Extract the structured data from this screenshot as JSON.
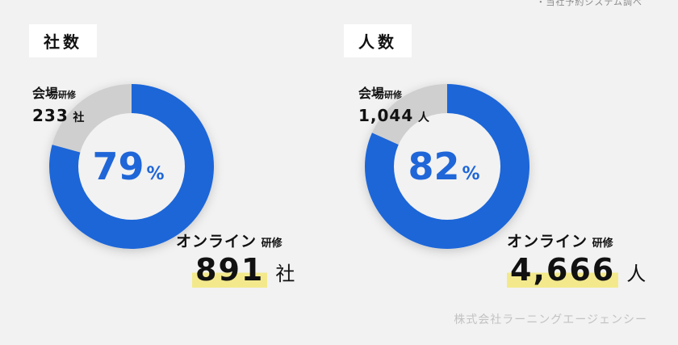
{
  "note": "・当社予約システム調べ",
  "footer": "株式会社ラーニングエージェンシー",
  "colors": {
    "online": "#1f66d8",
    "venue": "#cfcfcf",
    "center": "#f2f2f2",
    "percent_text": "#1f66d8",
    "highlight": "#f3e98c"
  },
  "chart_data": [
    {
      "type": "pie",
      "title": "社数",
      "center_label": "79",
      "center_suffix": "%",
      "slices": [
        {
          "name": "オンライン研修",
          "value": 891,
          "unit": "社"
        },
        {
          "name": "会場研修",
          "value": 233,
          "unit": "社"
        }
      ],
      "labels": {
        "online_name": "オンライン",
        "online_suffix": "研修",
        "online_value": "891",
        "online_unit": "社",
        "venue_name": "会場",
        "venue_suffix": "研修",
        "venue_value": "233",
        "venue_unit": "社"
      }
    },
    {
      "type": "pie",
      "title": "人数",
      "center_label": "82",
      "center_suffix": "%",
      "slices": [
        {
          "name": "オンライン研修",
          "value": 4666,
          "unit": "人"
        },
        {
          "name": "会場研修",
          "value": 1044,
          "unit": "人"
        }
      ],
      "labels": {
        "online_name": "オンライン",
        "online_suffix": "研修",
        "online_value": "4,666",
        "online_unit": "人",
        "venue_name": "会場",
        "venue_suffix": "研修",
        "venue_value": "1,044",
        "venue_unit": "人"
      }
    }
  ]
}
